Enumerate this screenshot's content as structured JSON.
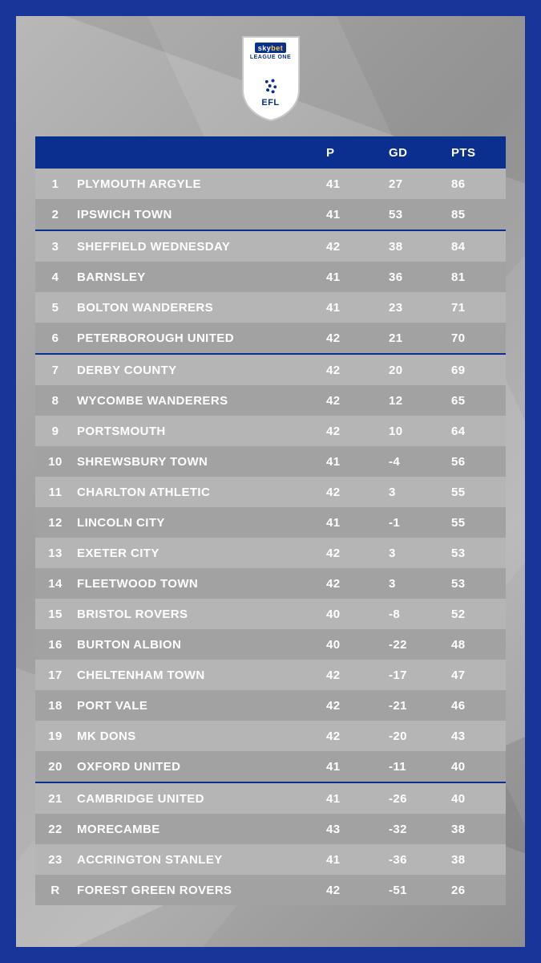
{
  "logo": {
    "skybet_sky": "sky",
    "skybet_bet": "bet",
    "league_line": "LEAGUE ONE",
    "efl": "EFL"
  },
  "table": {
    "type": "table",
    "header_bg": "#0a2f8f",
    "row_light_bg": "#b5b5b5",
    "row_dark_bg": "#a2a2a2",
    "separator_color": "#0a2f8f",
    "text_color": "#ffffff",
    "columns": {
      "pos": "",
      "team": "",
      "p": "P",
      "gd": "GD",
      "pts": "PTS"
    },
    "separators_after_position": [
      2,
      6,
      20
    ],
    "rows": [
      {
        "pos": "1",
        "team": "PLYMOUTH ARGYLE",
        "p": "41",
        "gd": "27",
        "pts": "86",
        "shade": "light"
      },
      {
        "pos": "2",
        "team": "IPSWICH TOWN",
        "p": "41",
        "gd": "53",
        "pts": "85",
        "shade": "dark"
      },
      {
        "pos": "3",
        "team": "SHEFFIELD WEDNESDAY",
        "p": "42",
        "gd": "38",
        "pts": "84",
        "shade": "light"
      },
      {
        "pos": "4",
        "team": "BARNSLEY",
        "p": "41",
        "gd": "36",
        "pts": "81",
        "shade": "dark"
      },
      {
        "pos": "5",
        "team": "BOLTON WANDERERS",
        "p": "41",
        "gd": "23",
        "pts": "71",
        "shade": "light"
      },
      {
        "pos": "6",
        "team": "PETERBOROUGH UNITED",
        "p": "42",
        "gd": "21",
        "pts": "70",
        "shade": "dark"
      },
      {
        "pos": "7",
        "team": "DERBY COUNTY",
        "p": "42",
        "gd": "20",
        "pts": "69",
        "shade": "light"
      },
      {
        "pos": "8",
        "team": "WYCOMBE WANDERERS",
        "p": "42",
        "gd": "12",
        "pts": "65",
        "shade": "dark"
      },
      {
        "pos": "9",
        "team": "PORTSMOUTH",
        "p": "42",
        "gd": "10",
        "pts": "64",
        "shade": "light"
      },
      {
        "pos": "10",
        "team": "SHREWSBURY TOWN",
        "p": "41",
        "gd": "-4",
        "pts": "56",
        "shade": "dark"
      },
      {
        "pos": "11",
        "team": "CHARLTON ATHLETIC",
        "p": "42",
        "gd": "3",
        "pts": "55",
        "shade": "light"
      },
      {
        "pos": "12",
        "team": "LINCOLN CITY",
        "p": "41",
        "gd": "-1",
        "pts": "55",
        "shade": "dark"
      },
      {
        "pos": "13",
        "team": "EXETER CITY",
        "p": "42",
        "gd": "3",
        "pts": "53",
        "shade": "light"
      },
      {
        "pos": "14",
        "team": "FLEETWOOD TOWN",
        "p": "42",
        "gd": "3",
        "pts": "53",
        "shade": "dark"
      },
      {
        "pos": "15",
        "team": "BRISTOL ROVERS",
        "p": "40",
        "gd": "-8",
        "pts": "52",
        "shade": "light"
      },
      {
        "pos": "16",
        "team": "BURTON ALBION",
        "p": "40",
        "gd": "-22",
        "pts": "48",
        "shade": "dark"
      },
      {
        "pos": "17",
        "team": "CHELTENHAM TOWN",
        "p": "42",
        "gd": "-17",
        "pts": "47",
        "shade": "light"
      },
      {
        "pos": "18",
        "team": "PORT VALE",
        "p": "42",
        "gd": "-21",
        "pts": "46",
        "shade": "dark"
      },
      {
        "pos": "19",
        "team": "MK DONS",
        "p": "42",
        "gd": "-20",
        "pts": "43",
        "shade": "light"
      },
      {
        "pos": "20",
        "team": "OXFORD UNITED",
        "p": "41",
        "gd": "-11",
        "pts": "40",
        "shade": "dark"
      },
      {
        "pos": "21",
        "team": "CAMBRIDGE UNITED",
        "p": "41",
        "gd": "-26",
        "pts": "40",
        "shade": "light"
      },
      {
        "pos": "22",
        "team": "MORECAMBE",
        "p": "43",
        "gd": "-32",
        "pts": "38",
        "shade": "dark"
      },
      {
        "pos": "23",
        "team": "ACCRINGTON STANLEY",
        "p": "41",
        "gd": "-36",
        "pts": "38",
        "shade": "light"
      },
      {
        "pos": "R",
        "team": "FOREST GREEN ROVERS",
        "p": "42",
        "gd": "-51",
        "pts": "26",
        "shade": "dark"
      }
    ]
  },
  "colors": {
    "outer_frame": "#18359a",
    "panel_grey_a": "#b8b8b8",
    "panel_grey_b": "#8f8f8f"
  }
}
